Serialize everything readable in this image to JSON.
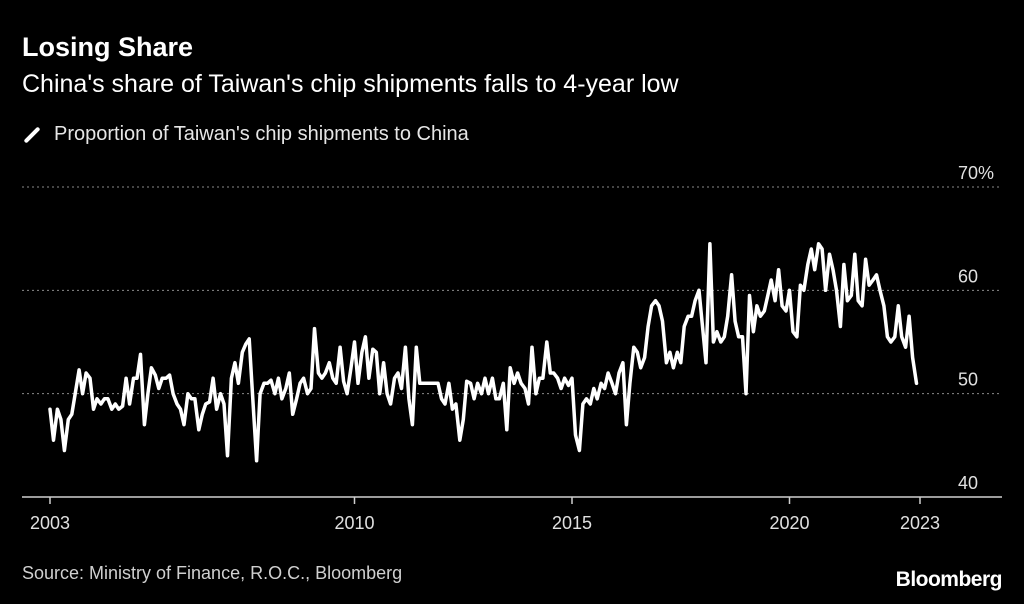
{
  "header": {
    "title": "Losing Share",
    "subtitle": "China's share of Taiwan's chip shipments falls to 4-year low"
  },
  "legend": {
    "label": "Proportion of Taiwan's chip shipments to China"
  },
  "footer": {
    "source": "Source: Ministry of Finance, R.O.C., Bloomberg",
    "brand": "Bloomberg"
  },
  "colors": {
    "background": "#000000",
    "series": "#ffffff",
    "grid": "#8a8a8a"
  },
  "chart_data": {
    "type": "line",
    "title": "Losing Share",
    "subtitle": "China's share of Taiwan's chip shipments falls to 4-year low",
    "xlabel": "",
    "ylabel": "",
    "ylim": [
      40,
      70
    ],
    "xlim": [
      2003,
      2023
    ],
    "y_ticks": [
      {
        "value": 40,
        "label": "40"
      },
      {
        "value": 50,
        "label": "50"
      },
      {
        "value": 60,
        "label": "60"
      },
      {
        "value": 70,
        "label": "70%"
      }
    ],
    "x_ticks": [
      {
        "value": 2003,
        "label": "2003"
      },
      {
        "value": 2010,
        "label": "2010"
      },
      {
        "value": 2015,
        "label": "2015"
      },
      {
        "value": 2020,
        "label": "2020"
      },
      {
        "value": 2023,
        "label": "2023"
      }
    ],
    "grid": true,
    "series": [
      {
        "name": "Proportion of Taiwan's chip shipments to China",
        "x": [
          2003.0,
          2003.08,
          2003.17,
          2003.25,
          2003.33,
          2003.42,
          2003.5,
          2003.58,
          2003.67,
          2003.75,
          2003.83,
          2003.92,
          2004.0,
          2004.08,
          2004.17,
          2004.25,
          2004.33,
          2004.42,
          2004.5,
          2004.58,
          2004.67,
          2004.75,
          2004.83,
          2004.92,
          2005.0,
          2005.08,
          2005.17,
          2005.25,
          2005.33,
          2005.42,
          2005.5,
          2005.58,
          2005.67,
          2005.75,
          2005.83,
          2005.92,
          2006.0,
          2006.08,
          2006.17,
          2006.25,
          2006.33,
          2006.42,
          2006.5,
          2006.58,
          2006.67,
          2006.75,
          2006.83,
          2006.92,
          2007.0,
          2007.08,
          2007.17,
          2007.25,
          2007.33,
          2007.42,
          2007.5,
          2007.58,
          2007.67,
          2007.75,
          2007.83,
          2007.92,
          2008.0,
          2008.08,
          2008.17,
          2008.25,
          2008.33,
          2008.42,
          2008.5,
          2008.58,
          2008.67,
          2008.75,
          2008.83,
          2008.92,
          2009.0,
          2009.08,
          2009.17,
          2009.25,
          2009.33,
          2009.42,
          2009.5,
          2009.58,
          2009.67,
          2009.75,
          2009.83,
          2009.92,
          2010.0,
          2010.08,
          2010.17,
          2010.25,
          2010.33,
          2010.42,
          2010.5,
          2010.58,
          2010.67,
          2010.75,
          2010.83,
          2010.92,
          2011.0,
          2011.08,
          2011.17,
          2011.25,
          2011.33,
          2011.42,
          2011.5,
          2011.58,
          2011.67,
          2011.75,
          2011.83,
          2011.92,
          2012.0,
          2012.08,
          2012.17,
          2012.25,
          2012.33,
          2012.42,
          2012.5,
          2012.58,
          2012.67,
          2012.75,
          2012.83,
          2012.92,
          2013.0,
          2013.08,
          2013.17,
          2013.25,
          2013.33,
          2013.42,
          2013.5,
          2013.58,
          2013.67,
          2013.75,
          2013.83,
          2013.92,
          2014.0,
          2014.08,
          2014.17,
          2014.25,
          2014.33,
          2014.42,
          2014.5,
          2014.58,
          2014.67,
          2014.75,
          2014.83,
          2014.92,
          2015.0,
          2015.08,
          2015.17,
          2015.25,
          2015.33,
          2015.42,
          2015.5,
          2015.58,
          2015.67,
          2015.75,
          2015.83,
          2015.92,
          2016.0,
          2016.08,
          2016.17,
          2016.25,
          2016.33,
          2016.42,
          2016.5,
          2016.58,
          2016.67,
          2016.75,
          2016.83,
          2016.92,
          2017.0,
          2017.08,
          2017.17,
          2017.25,
          2017.33,
          2017.42,
          2017.5,
          2017.58,
          2017.67,
          2017.75,
          2017.83,
          2017.92,
          2018.0,
          2018.08,
          2018.17,
          2018.25,
          2018.33,
          2018.42,
          2018.5,
          2018.58,
          2018.67,
          2018.75,
          2018.83,
          2018.92,
          2019.0,
          2019.08,
          2019.17,
          2019.25,
          2019.33,
          2019.42,
          2019.5,
          2019.58,
          2019.67,
          2019.75,
          2019.83,
          2019.92,
          2020.0,
          2020.08,
          2020.17,
          2020.25,
          2020.33,
          2020.42,
          2020.5,
          2020.58,
          2020.67,
          2020.75,
          2020.83,
          2020.92,
          2021.0,
          2021.08,
          2021.17,
          2021.25,
          2021.33,
          2021.42,
          2021.5,
          2021.58,
          2021.67,
          2021.75,
          2021.83,
          2021.92,
          2022.0,
          2022.08,
          2022.17,
          2022.25,
          2022.33,
          2022.42,
          2022.5,
          2022.58,
          2022.67,
          2022.75,
          2022.83,
          2022.92
        ],
        "values": [
          48.5,
          45.5,
          48.5,
          47.5,
          44.5,
          47.5,
          48.0,
          50.0,
          52.3,
          50.0,
          52.0,
          51.5,
          48.5,
          49.5,
          49.0,
          49.5,
          49.5,
          48.5,
          49.0,
          48.5,
          48.8,
          51.5,
          49.0,
          51.5,
          51.5,
          53.8,
          47.0,
          50.0,
          52.5,
          51.8,
          50.5,
          51.5,
          51.5,
          51.8,
          50.0,
          49.0,
          48.5,
          47.0,
          50.0,
          49.5,
          49.5,
          46.5,
          48.0,
          49.0,
          49.2,
          51.5,
          48.5,
          50.0,
          49.0,
          44.0,
          51.5,
          53.0,
          51.0,
          54.0,
          54.8,
          55.3,
          49.0,
          43.5,
          50.0,
          51.0,
          51.0,
          51.3,
          50.0,
          51.5,
          49.5,
          50.5,
          52.0,
          48.0,
          49.5,
          51.0,
          51.5,
          50.0,
          50.5,
          56.3,
          52.0,
          51.5,
          52.0,
          53.0,
          51.5,
          51.0,
          54.5,
          51.2,
          50.0,
          52.5,
          55.0,
          51.0,
          54.0,
          55.5,
          51.5,
          54.3,
          54.0,
          50.0,
          53.0,
          50.0,
          49.0,
          51.5,
          52.0,
          50.5,
          54.5,
          49.5,
          47.0,
          54.5,
          51.0,
          51.0,
          51.0,
          51.0,
          51.0,
          51.0,
          49.5,
          49.0,
          51.0,
          48.5,
          49.0,
          45.5,
          47.5,
          51.2,
          51.0,
          49.5,
          51.0,
          50.0,
          51.5,
          50.0,
          51.5,
          49.5,
          49.5,
          51.0,
          46.5,
          52.5,
          51.0,
          52.0,
          51.0,
          50.5,
          49.0,
          54.5,
          50.0,
          51.5,
          51.5,
          55.0,
          52.0,
          52.0,
          51.5,
          50.5,
          51.5,
          50.8,
          51.5,
          46.0,
          44.5,
          49.0,
          49.5,
          49.0,
          50.5,
          49.5,
          51.0,
          50.5,
          52.0,
          51.0,
          50.0,
          52.0,
          53.0,
          47.0,
          51.0,
          54.5,
          54.0,
          52.5,
          53.5,
          56.5,
          58.5,
          59.0,
          58.5,
          57.0,
          53.0,
          54.0,
          52.5,
          54.0,
          53.0,
          56.5,
          57.5,
          57.5,
          59.0,
          60.0,
          56.5,
          53.0,
          64.5,
          55.0,
          56.0,
          55.0,
          55.5,
          57.5,
          61.5,
          57.0,
          55.5,
          55.5,
          50.0,
          59.5,
          56.0,
          58.5,
          57.5,
          58.0,
          59.5,
          61.0,
          59.0,
          62.0,
          58.5,
          58.0,
          60.0,
          56.0,
          55.5,
          60.5,
          60.0,
          62.5,
          64.0,
          62.0,
          64.5,
          64.0,
          60.0,
          63.5,
          62.0,
          60.0,
          56.5,
          62.5,
          59.0,
          59.5,
          63.5,
          59.0,
          58.5,
          63.0,
          60.5,
          61.0,
          61.5,
          60.0,
          58.5,
          55.5,
          55.0,
          55.5,
          58.5,
          55.5,
          54.5,
          57.5,
          53.5,
          51.0
        ]
      }
    ]
  }
}
